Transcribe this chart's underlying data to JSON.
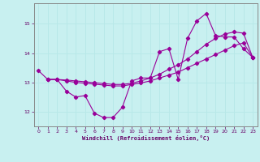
{
  "xlabel": "Windchill (Refroidissement éolien,°C)",
  "bg_color": "#c8f0f0",
  "line_color": "#990099",
  "grid_color": "#b8e8e8",
  "xlim": [
    -0.5,
    23.5
  ],
  "ylim": [
    11.5,
    15.7
  ],
  "yticks": [
    12,
    13,
    14,
    15
  ],
  "xticks": [
    0,
    1,
    2,
    3,
    4,
    5,
    6,
    7,
    8,
    9,
    10,
    11,
    12,
    13,
    14,
    15,
    16,
    17,
    18,
    19,
    20,
    21,
    22,
    23
  ],
  "curve1_x": [
    0,
    1,
    2,
    3,
    4,
    5,
    6,
    7,
    8,
    9,
    10,
    11,
    12,
    13,
    14,
    15,
    16,
    17,
    18,
    19,
    20,
    21,
    22,
    23
  ],
  "curve1_y": [
    13.4,
    13.1,
    13.1,
    12.7,
    12.5,
    12.55,
    11.95,
    11.8,
    11.8,
    12.15,
    13.05,
    13.15,
    13.15,
    14.05,
    14.15,
    13.1,
    14.5,
    15.1,
    15.35,
    14.6,
    14.55,
    14.55,
    14.15,
    13.85
  ],
  "curve2_x": [
    1,
    2,
    3,
    4,
    5,
    6,
    7,
    8,
    9,
    10,
    11,
    12,
    13,
    14,
    15,
    16,
    17,
    18,
    19,
    20,
    21,
    22,
    23
  ],
  "curve2_y": [
    13.1,
    13.1,
    13.05,
    13.0,
    12.97,
    12.94,
    12.91,
    12.88,
    12.88,
    12.93,
    12.98,
    13.05,
    13.15,
    13.25,
    13.35,
    13.5,
    13.65,
    13.8,
    13.95,
    14.1,
    14.25,
    14.35,
    13.85
  ],
  "curve3_x": [
    1,
    2,
    3,
    4,
    5,
    6,
    7,
    8,
    9,
    10,
    11,
    12,
    13,
    14,
    15,
    16,
    17,
    18,
    19,
    20,
    21,
    22,
    23
  ],
  "curve3_y": [
    13.1,
    13.1,
    13.08,
    13.05,
    13.02,
    12.99,
    12.96,
    12.93,
    12.93,
    12.97,
    13.05,
    13.15,
    13.28,
    13.45,
    13.6,
    13.8,
    14.05,
    14.3,
    14.5,
    14.65,
    14.72,
    14.68,
    13.85
  ]
}
